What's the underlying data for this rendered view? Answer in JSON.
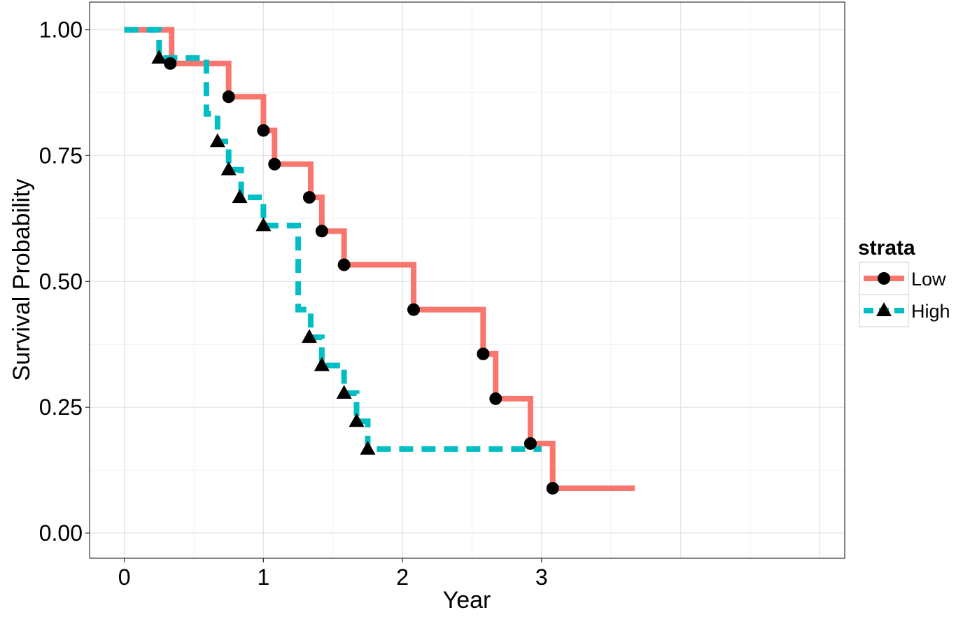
{
  "chart_data": {
    "type": "line",
    "title": "",
    "xlabel": "Year",
    "ylabel": "Survival Probability",
    "xlim": [
      -0.25,
      5.18
    ],
    "ylim": [
      -0.05,
      1.055
    ],
    "x_ticks": [
      0,
      1,
      2,
      3
    ],
    "x_tick_labels": [
      "0",
      "1",
      "2",
      "3"
    ],
    "y_ticks": [
      0,
      0.25,
      0.5,
      0.75,
      1.0
    ],
    "y_tick_labels": [
      "0.00",
      "0.25",
      "0.50",
      "0.75",
      "1.00"
    ],
    "grid": true,
    "legend": {
      "title": "strata",
      "placement": "right"
    },
    "series": [
      {
        "name": "Low",
        "color": "#F8766D",
        "line_style": "solid",
        "marker": "circle",
        "steps": [
          [
            0,
            1.0
          ],
          [
            0.34,
            0.933
          ],
          [
            0.75,
            0.867
          ],
          [
            1.0,
            0.8
          ],
          [
            1.08,
            0.733
          ],
          [
            1.34,
            0.667
          ],
          [
            1.42,
            0.6
          ],
          [
            1.58,
            0.533
          ],
          [
            2.08,
            0.444
          ],
          [
            2.58,
            0.356
          ],
          [
            2.67,
            0.267
          ],
          [
            2.92,
            0.178
          ],
          [
            3.08,
            0.089
          ]
        ],
        "end_x": 3.67,
        "markers": [
          [
            0.33,
            0.933
          ],
          [
            0.75,
            0.867
          ],
          [
            1.0,
            0.8
          ],
          [
            1.08,
            0.733
          ],
          [
            1.33,
            0.667
          ],
          [
            1.42,
            0.6
          ],
          [
            1.58,
            0.533
          ],
          [
            2.08,
            0.444
          ],
          [
            2.58,
            0.356
          ],
          [
            2.67,
            0.267
          ],
          [
            2.92,
            0.178
          ],
          [
            3.08,
            0.089
          ]
        ]
      },
      {
        "name": "High",
        "color": "#00BFC4",
        "line_style": "dashed",
        "marker": "triangle",
        "steps": [
          [
            0,
            1.0
          ],
          [
            0.25,
            0.944
          ],
          [
            0.59,
            0.833
          ],
          [
            0.67,
            0.778
          ],
          [
            0.75,
            0.722
          ],
          [
            0.84,
            0.667
          ],
          [
            1.0,
            0.611
          ],
          [
            1.25,
            0.444
          ],
          [
            1.34,
            0.389
          ],
          [
            1.42,
            0.333
          ],
          [
            1.58,
            0.278
          ],
          [
            1.67,
            0.222
          ],
          [
            1.75,
            0.167
          ]
        ],
        "end_x": 3.0,
        "markers": [
          [
            0.25,
            0.944
          ],
          [
            0.67,
            0.778
          ],
          [
            0.75,
            0.722
          ],
          [
            0.83,
            0.667
          ],
          [
            1.0,
            0.611
          ],
          [
            1.33,
            0.389
          ],
          [
            1.42,
            0.333
          ],
          [
            1.58,
            0.278
          ],
          [
            1.67,
            0.222
          ],
          [
            1.75,
            0.167
          ]
        ]
      }
    ]
  }
}
